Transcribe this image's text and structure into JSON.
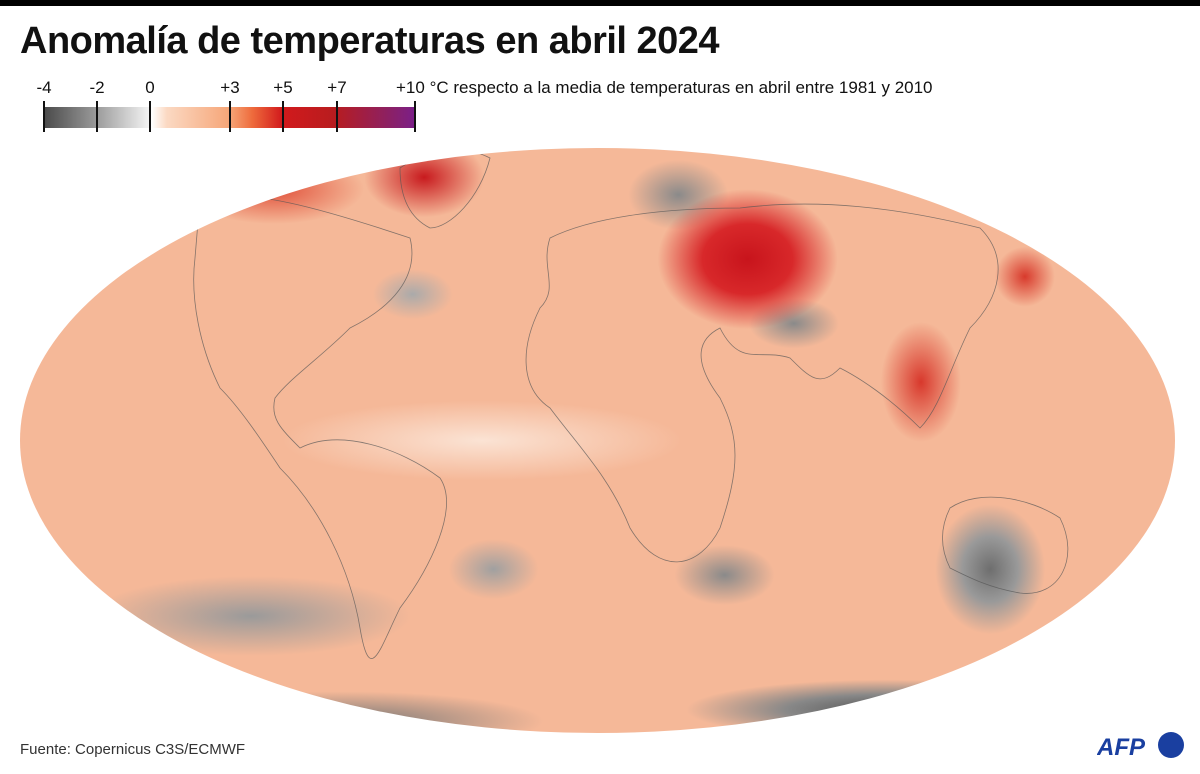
{
  "title": "Anomalía de temperaturas en abril 2024",
  "legend": {
    "ticks": [
      {
        "label": "-4",
        "value": -4
      },
      {
        "label": "-2",
        "value": -2
      },
      {
        "label": "0",
        "value": 0
      },
      {
        "label": "+3",
        "value": 3
      },
      {
        "label": "+5",
        "value": 5
      },
      {
        "label": "+7",
        "value": 7
      },
      {
        "label": "+10",
        "value": 10
      }
    ],
    "unit_text": "°C respecto a la media de temperaturas en abril entre 1981 y 2010",
    "colors": {
      "min": "#4a4a4a",
      "zero": "#ffffff",
      "mid": "#f6a577",
      "high": "#d21a1c",
      "max": "#7a1f8a"
    }
  },
  "map": {
    "projection": "robinson",
    "subject": "temperature anomaly"
  },
  "footer": {
    "source": "Fuente: Copernicus C3S/ECMWF"
  },
  "logo": {
    "text": "AFP",
    "color": "#1a3fa0"
  }
}
